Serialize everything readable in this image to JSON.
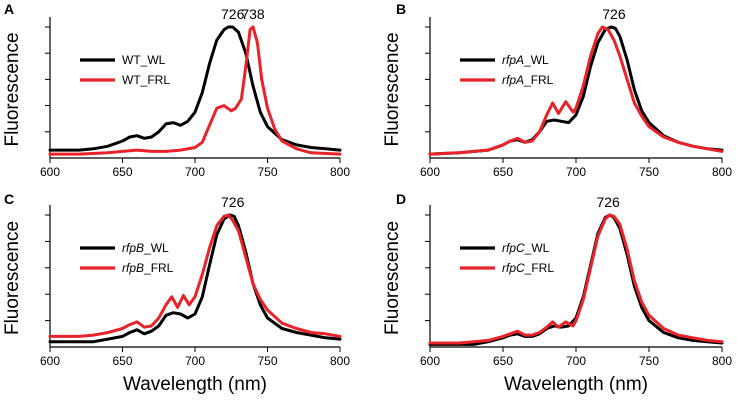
{
  "x_axis_label": "Wavelength (nm)",
  "y_axis_label": "Fluorescence",
  "colors": {
    "WL": "#000000",
    "FRL": "#e8232a"
  },
  "chart_data": [
    {
      "panel": "A",
      "type": "line",
      "xlim": [
        600,
        800
      ],
      "ylim": [
        0,
        1
      ],
      "xticks": [
        600,
        650,
        700,
        750,
        800
      ],
      "yticks": [
        0.2,
        0.4,
        0.6,
        0.8,
        1.0
      ],
      "peak_labels": [
        {
          "text": "726",
          "x": 726,
          "y": 1.0
        },
        {
          "text": "738",
          "x": 740,
          "y": 1.0
        }
      ],
      "legend_placement": "top-left",
      "series": [
        {
          "name": "WT_WL",
          "italic_prefix": "",
          "plain_label": "WT_WL",
          "color_key": "WL",
          "x": [
            600,
            620,
            630,
            640,
            650,
            655,
            660,
            665,
            670,
            675,
            680,
            685,
            690,
            695,
            700,
            705,
            710,
            715,
            720,
            723,
            726,
            730,
            735,
            740,
            745,
            750,
            760,
            770,
            780,
            790,
            800
          ],
          "y": [
            0.06,
            0.06,
            0.07,
            0.09,
            0.13,
            0.16,
            0.17,
            0.15,
            0.16,
            0.2,
            0.26,
            0.27,
            0.25,
            0.28,
            0.35,
            0.5,
            0.72,
            0.9,
            0.98,
            1.0,
            1.0,
            0.96,
            0.8,
            0.55,
            0.35,
            0.24,
            0.14,
            0.1,
            0.08,
            0.07,
            0.06
          ]
        },
        {
          "name": "WT_FRL",
          "italic_prefix": "",
          "plain_label": "WT_FRL",
          "color_key": "FRL",
          "x": [
            600,
            620,
            640,
            650,
            660,
            670,
            680,
            690,
            700,
            705,
            710,
            715,
            720,
            725,
            728,
            732,
            735,
            738,
            740,
            743,
            746,
            750,
            755,
            760,
            770,
            780,
            800
          ],
          "y": [
            0.03,
            0.03,
            0.04,
            0.05,
            0.06,
            0.05,
            0.05,
            0.06,
            0.08,
            0.12,
            0.25,
            0.38,
            0.4,
            0.36,
            0.38,
            0.45,
            0.7,
            0.98,
            1.0,
            0.88,
            0.6,
            0.38,
            0.22,
            0.13,
            0.07,
            0.04,
            0.03
          ]
        }
      ]
    },
    {
      "panel": "B",
      "type": "line",
      "xlim": [
        600,
        800
      ],
      "ylim": [
        0,
        1
      ],
      "xticks": [
        600,
        650,
        700,
        750,
        800
      ],
      "yticks": [
        0.2,
        0.4,
        0.6,
        0.8,
        1.0
      ],
      "peak_labels": [
        {
          "text": "726",
          "x": 726,
          "y": 1.0
        }
      ],
      "legend_placement": "top-left",
      "series": [
        {
          "name": "rfpA_WL",
          "italic_prefix": "rfpA",
          "plain_label": "_WL",
          "color_key": "WL",
          "x": [
            600,
            620,
            640,
            650,
            655,
            660,
            665,
            670,
            675,
            680,
            685,
            690,
            695,
            700,
            705,
            710,
            715,
            720,
            724,
            727,
            730,
            735,
            740,
            745,
            750,
            760,
            770,
            780,
            790,
            800
          ],
          "y": [
            0.03,
            0.04,
            0.06,
            0.1,
            0.13,
            0.14,
            0.12,
            0.14,
            0.2,
            0.28,
            0.29,
            0.28,
            0.27,
            0.33,
            0.47,
            0.7,
            0.88,
            0.98,
            1.0,
            0.99,
            0.93,
            0.75,
            0.52,
            0.36,
            0.27,
            0.17,
            0.12,
            0.09,
            0.07,
            0.06
          ]
        },
        {
          "name": "rfpA_FRL",
          "italic_prefix": "rfpA",
          "plain_label": "_FRL",
          "color_key": "FRL",
          "x": [
            600,
            620,
            640,
            650,
            655,
            660,
            665,
            670,
            675,
            680,
            684,
            688,
            693,
            698,
            700,
            705,
            710,
            715,
            718,
            722,
            726,
            730,
            735,
            740,
            745,
            750,
            760,
            770,
            780,
            790,
            800
          ],
          "y": [
            0.03,
            0.04,
            0.06,
            0.1,
            0.13,
            0.15,
            0.12,
            0.13,
            0.2,
            0.33,
            0.42,
            0.34,
            0.43,
            0.35,
            0.38,
            0.55,
            0.78,
            0.95,
            1.0,
            0.98,
            0.9,
            0.78,
            0.6,
            0.42,
            0.32,
            0.24,
            0.16,
            0.12,
            0.09,
            0.07,
            0.05
          ]
        }
      ]
    },
    {
      "panel": "C",
      "type": "line",
      "xlim": [
        600,
        800
      ],
      "ylim": [
        0,
        1
      ],
      "xticks": [
        600,
        650,
        700,
        750,
        800
      ],
      "yticks": [
        0.2,
        0.4,
        0.6,
        0.8,
        1.0
      ],
      "peak_labels": [
        {
          "text": "726",
          "x": 726,
          "y": 1.0
        }
      ],
      "legend_placement": "top-left",
      "series": [
        {
          "name": "rfpB_WL",
          "italic_prefix": "rfpB",
          "plain_label": "_WL",
          "color_key": "WL",
          "x": [
            600,
            620,
            630,
            640,
            650,
            655,
            660,
            665,
            670,
            675,
            680,
            685,
            690,
            695,
            700,
            705,
            710,
            715,
            720,
            724,
            727,
            730,
            735,
            740,
            745,
            750,
            760,
            770,
            780,
            790,
            800
          ],
          "y": [
            0.04,
            0.04,
            0.04,
            0.06,
            0.08,
            0.11,
            0.13,
            0.1,
            0.12,
            0.16,
            0.24,
            0.26,
            0.25,
            0.22,
            0.25,
            0.38,
            0.62,
            0.85,
            0.97,
            1.0,
            0.99,
            0.92,
            0.72,
            0.48,
            0.32,
            0.22,
            0.14,
            0.11,
            0.09,
            0.07,
            0.06
          ]
        },
        {
          "name": "rfpB_FRL",
          "italic_prefix": "rfpB",
          "plain_label": "_FRL",
          "color_key": "FRL",
          "x": [
            600,
            620,
            630,
            640,
            650,
            655,
            660,
            665,
            670,
            675,
            680,
            684,
            688,
            692,
            696,
            700,
            705,
            710,
            715,
            720,
            723,
            726,
            730,
            735,
            740,
            745,
            750,
            760,
            770,
            780,
            790,
            800
          ],
          "y": [
            0.08,
            0.08,
            0.09,
            0.11,
            0.14,
            0.17,
            0.19,
            0.15,
            0.16,
            0.22,
            0.32,
            0.38,
            0.3,
            0.39,
            0.32,
            0.38,
            0.55,
            0.75,
            0.92,
            0.99,
            1.0,
            0.96,
            0.88,
            0.68,
            0.48,
            0.36,
            0.28,
            0.18,
            0.14,
            0.11,
            0.1,
            0.08
          ]
        }
      ]
    },
    {
      "panel": "D",
      "type": "line",
      "xlim": [
        600,
        800
      ],
      "ylim": [
        0,
        1
      ],
      "xticks": [
        600,
        650,
        700,
        750,
        800
      ],
      "yticks": [
        0.2,
        0.4,
        0.6,
        0.8,
        1.0
      ],
      "peak_labels": [
        {
          "text": "726",
          "x": 722,
          "y": 1.0
        }
      ],
      "legend_placement": "top-left",
      "series": [
        {
          "name": "rfpC_WL",
          "italic_prefix": "rfpC",
          "plain_label": "_WL",
          "color_key": "WL",
          "x": [
            600,
            620,
            630,
            640,
            650,
            655,
            660,
            665,
            670,
            675,
            680,
            685,
            690,
            695,
            700,
            705,
            710,
            715,
            720,
            723,
            726,
            730,
            735,
            740,
            745,
            750,
            760,
            770,
            780,
            790,
            800
          ],
          "y": [
            0.02,
            0.02,
            0.02,
            0.04,
            0.07,
            0.09,
            0.1,
            0.08,
            0.08,
            0.1,
            0.14,
            0.16,
            0.15,
            0.16,
            0.22,
            0.38,
            0.62,
            0.86,
            0.98,
            1.0,
            0.98,
            0.9,
            0.7,
            0.46,
            0.3,
            0.2,
            0.11,
            0.07,
            0.05,
            0.04,
            0.03
          ]
        },
        {
          "name": "rfpC_FRL",
          "italic_prefix": "rfpC",
          "plain_label": "_FRL",
          "color_key": "FRL",
          "x": [
            600,
            620,
            630,
            640,
            650,
            655,
            660,
            665,
            670,
            675,
            680,
            684,
            688,
            693,
            698,
            700,
            705,
            710,
            715,
            720,
            723,
            726,
            730,
            735,
            740,
            745,
            750,
            760,
            770,
            780,
            790,
            800
          ],
          "y": [
            0.03,
            0.03,
            0.04,
            0.05,
            0.08,
            0.1,
            0.12,
            0.09,
            0.09,
            0.11,
            0.15,
            0.19,
            0.15,
            0.19,
            0.16,
            0.2,
            0.36,
            0.6,
            0.84,
            0.97,
            1.0,
            0.99,
            0.93,
            0.74,
            0.5,
            0.34,
            0.24,
            0.14,
            0.09,
            0.07,
            0.05,
            0.04
          ]
        }
      ]
    }
  ]
}
